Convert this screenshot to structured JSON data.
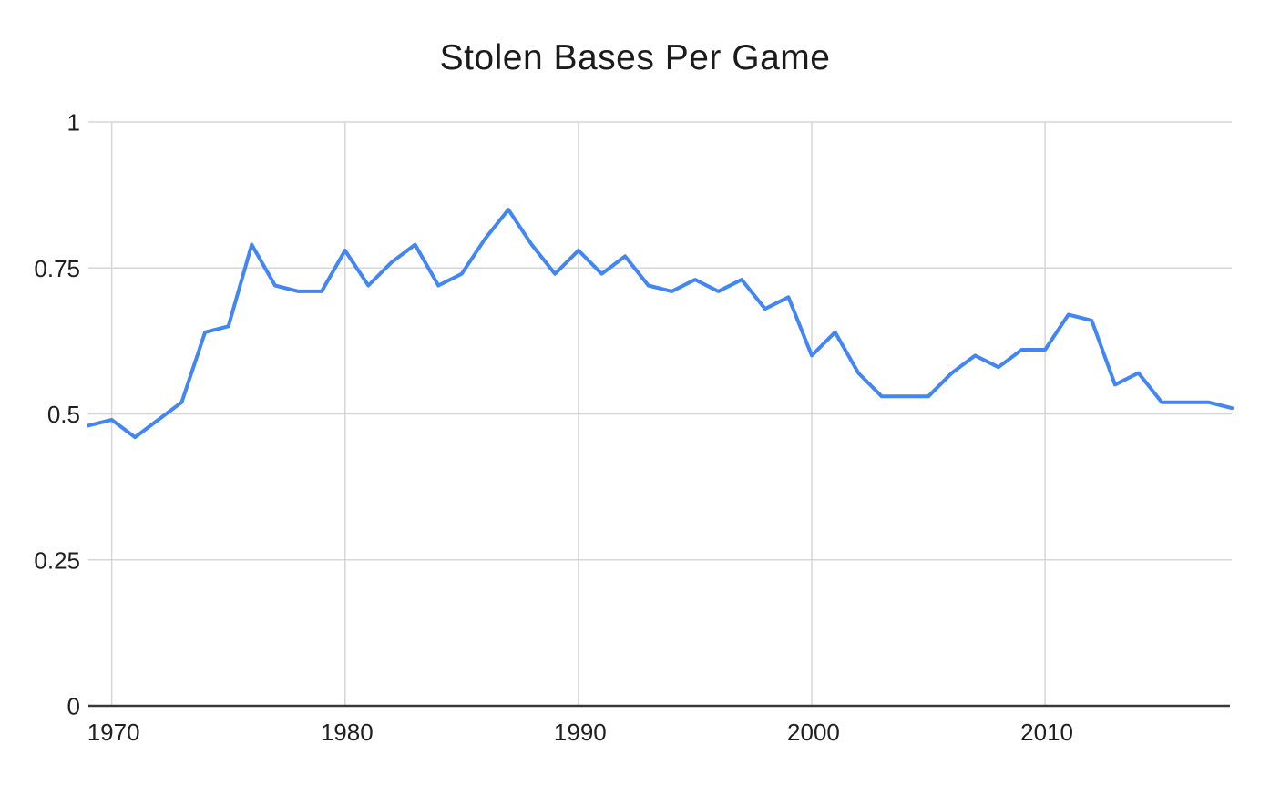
{
  "chart_data": {
    "type": "line",
    "title": "Stolen Bases Per Game",
    "xlabel": "",
    "ylabel": "",
    "x": [
      1969,
      1970,
      1971,
      1972,
      1973,
      1974,
      1975,
      1976,
      1977,
      1978,
      1979,
      1980,
      1981,
      1982,
      1983,
      1984,
      1985,
      1986,
      1987,
      1988,
      1989,
      1990,
      1991,
      1992,
      1993,
      1994,
      1995,
      1996,
      1997,
      1998,
      1999,
      2000,
      2001,
      2002,
      2003,
      2004,
      2005,
      2006,
      2007,
      2008,
      2009,
      2010,
      2011,
      2012,
      2013,
      2014,
      2015,
      2016,
      2017,
      2018
    ],
    "series": [
      {
        "name": "Stolen Bases Per Game",
        "values": [
          0.48,
          0.49,
          0.46,
          0.49,
          0.52,
          0.64,
          0.65,
          0.79,
          0.72,
          0.71,
          0.71,
          0.78,
          0.72,
          0.76,
          0.79,
          0.72,
          0.74,
          0.8,
          0.85,
          0.79,
          0.74,
          0.78,
          0.74,
          0.77,
          0.72,
          0.71,
          0.73,
          0.71,
          0.73,
          0.68,
          0.7,
          0.6,
          0.64,
          0.57,
          0.53,
          0.53,
          0.53,
          0.57,
          0.6,
          0.58,
          0.61,
          0.61,
          0.67,
          0.66,
          0.55,
          0.57,
          0.52,
          0.52,
          0.52,
          0.51
        ]
      }
    ],
    "xlim": [
      1969,
      2018
    ],
    "ylim": [
      0,
      1
    ],
    "x_tick_values": [
      1970,
      1980,
      1990,
      2000,
      2010
    ],
    "x_tick_labels": [
      "1970",
      "1980",
      "1990",
      "2000",
      "2010"
    ],
    "y_tick_values": [
      0,
      0.25,
      0.5,
      0.75,
      1
    ],
    "y_tick_labels": [
      "0",
      "0.25",
      "0.5",
      "0.75",
      "1"
    ],
    "grid": true,
    "legend_position": "none",
    "line_color": "#4285f4",
    "grid_color": "#d6d6d6",
    "axis_color": "#383838",
    "label_color": "#1f1f1f"
  }
}
